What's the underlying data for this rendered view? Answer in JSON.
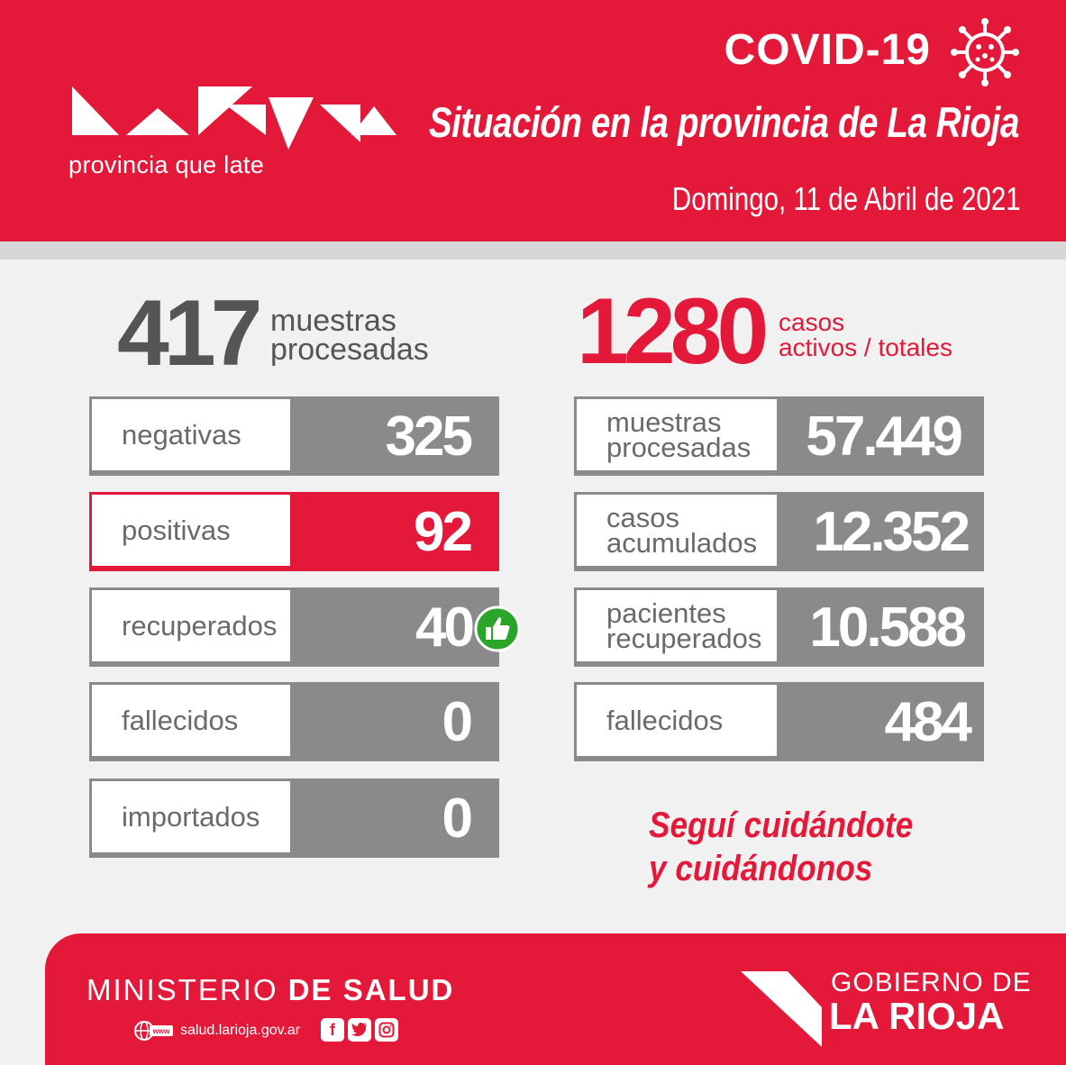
{
  "header": {
    "tagline": "provincia que late",
    "covid_title": "COVID-19",
    "situacion": "Situación en la provincia de La Rioja",
    "fecha": "Domingo, 11 de Abril de 2021",
    "logo_lettering": "La Rioja"
  },
  "daily": {
    "total": "417",
    "total_label_1": "muestras",
    "total_label_2": "procesadas",
    "rows": [
      {
        "label": "negativas",
        "value": "325"
      },
      {
        "label": "positivas",
        "value": "92"
      },
      {
        "label": "recuperados",
        "value": "40"
      },
      {
        "label": "fallecidos",
        "value": "0"
      },
      {
        "label": "importados",
        "value": "0"
      }
    ]
  },
  "totals": {
    "active": "1280",
    "active_label_1": "casos",
    "active_label_2": "activos / totales",
    "rows": [
      {
        "label_1": "muestras",
        "label_2": "procesadas",
        "value": "57.449"
      },
      {
        "label_1": "casos",
        "label_2": "acumulados",
        "value": "12.352"
      },
      {
        "label_1": "pacientes",
        "label_2": "recuperados",
        "value": "10.588"
      },
      {
        "label_1": "fallecidos",
        "label_2": "",
        "value": "484"
      }
    ]
  },
  "slogan": {
    "line1": "Seguí cuidándote",
    "line2": "y cuidándonos"
  },
  "footer": {
    "ministerio_1": "MINISTERIO",
    "ministerio_2": "DE SALUD",
    "website": "salud.larioja.gov.ar",
    "www_label": "www",
    "gobierno_1": "GOBIERNO DE",
    "gobierno_2": "LA RIOJA"
  },
  "colors": {
    "brand_red": "#e4193a",
    "box_gray": "#8a8a8a",
    "text_gray": "#555555",
    "thumb_green": "#2aa52a"
  },
  "icons": [
    "virus-icon",
    "thumbs-up-icon",
    "globe-icon",
    "facebook-icon",
    "twitter-icon",
    "instagram-icon",
    "la-rioja-map-icon"
  ]
}
